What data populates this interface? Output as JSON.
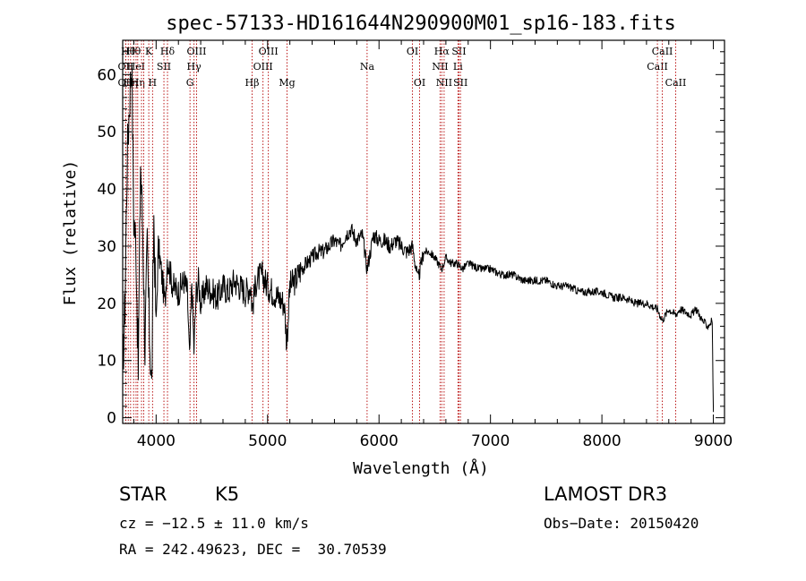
{
  "chart_data": {
    "type": "line",
    "title": "spec-57133-HD161644N290900M01_sp16-183.fits",
    "xlabel": "Wavelength (Å)",
    "ylabel": "Flux (relative)",
    "xlim": [
      3700,
      9100
    ],
    "ylim": [
      -1,
      66
    ],
    "xticks": [
      4000,
      5000,
      6000,
      7000,
      8000,
      9000
    ],
    "yticks": [
      0,
      10,
      20,
      30,
      40,
      50,
      60
    ],
    "xtick_labels": [
      "4000",
      "5000",
      "6000",
      "7000",
      "8000",
      "9000"
    ],
    "ytick_labels": [
      "0",
      "10",
      "20",
      "30",
      "40",
      "50",
      "60"
    ],
    "series": [
      {
        "name": "spectrum",
        "x": [
          3700,
          3720,
          3740,
          3760,
          3780,
          3800,
          3820,
          3840,
          3860,
          3880,
          3900,
          3920,
          3940,
          3960,
          3980,
          4000,
          4020,
          4050,
          4080,
          4100,
          4150,
          4200,
          4250,
          4280,
          4300,
          4320,
          4340,
          4360,
          4380,
          4400,
          4450,
          4500,
          4550,
          4600,
          4650,
          4700,
          4750,
          4800,
          4850,
          4861,
          4900,
          4950,
          5000,
          5050,
          5100,
          5150,
          5172,
          5200,
          5250,
          5300,
          5350,
          5400,
          5450,
          5500,
          5550,
          5600,
          5650,
          5700,
          5750,
          5800,
          5850,
          5893,
          5950,
          6000,
          6050,
          6100,
          6150,
          6200,
          6250,
          6300,
          6350,
          6400,
          6450,
          6500,
          6563,
          6600,
          6650,
          6700,
          6750,
          6800,
          6900,
          7000,
          7100,
          7200,
          7300,
          7400,
          7500,
          7600,
          7700,
          7800,
          7900,
          8000,
          8100,
          8200,
          8300,
          8400,
          8498,
          8542,
          8600,
          8662,
          8700,
          8800,
          8850,
          8900,
          8950,
          8990,
          9000
        ],
        "values": [
          8,
          20,
          45,
          55,
          63,
          35,
          30,
          8,
          45,
          33,
          12,
          30,
          15,
          5,
          35,
          16,
          30,
          25,
          20,
          28,
          23,
          22,
          24,
          22,
          10,
          24,
          12,
          22,
          24,
          20,
          23,
          22,
          21,
          23,
          22,
          24,
          23,
          22,
          23,
          19,
          24,
          25,
          23,
          22,
          21,
          20,
          13,
          23,
          24,
          26,
          27,
          28,
          29,
          29,
          30,
          31,
          30,
          32,
          33,
          31,
          32,
          26,
          32,
          31,
          31,
          30,
          31,
          30,
          29,
          30,
          24,
          29,
          29,
          28,
          26,
          28,
          27,
          27,
          26,
          27,
          26,
          26,
          25,
          25,
          24,
          24,
          24,
          23,
          23,
          22,
          22,
          22,
          21,
          21,
          20,
          20,
          19,
          17,
          19,
          18,
          19,
          18,
          19,
          17,
          16,
          17,
          1
        ]
      }
    ],
    "line_markers": [
      {
        "x": 3727,
        "label": "OII",
        "row": 2
      },
      {
        "x": 3727,
        "label": "OII",
        "row": 3
      },
      {
        "x": 3750,
        "label": "Hθ",
        "row": 1
      },
      {
        "x": 3771,
        "label": "Hη",
        "row": 3
      },
      {
        "x": 3798,
        "label": "Hθ",
        "row": 1
      },
      {
        "x": 3820,
        "label": "HeI",
        "row": 2
      },
      {
        "x": 3835,
        "label": "Hη",
        "row": 3
      },
      {
        "x": 3869,
        "label": "",
        "row": 0
      },
      {
        "x": 3889,
        "label": "",
        "row": 0
      },
      {
        "x": 3934,
        "label": "K",
        "row": 1
      },
      {
        "x": 3968,
        "label": "H",
        "row": 3
      },
      {
        "x": 4070,
        "label": "SII",
        "row": 2
      },
      {
        "x": 4102,
        "label": "Hδ",
        "row": 1
      },
      {
        "x": 4304,
        "label": "G",
        "row": 3
      },
      {
        "x": 4340,
        "label": "Hγ",
        "row": 2
      },
      {
        "x": 4363,
        "label": "OIII",
        "row": 1
      },
      {
        "x": 4861,
        "label": "Hβ",
        "row": 3
      },
      {
        "x": 4959,
        "label": "OIII",
        "row": 2
      },
      {
        "x": 5007,
        "label": "OIII",
        "row": 1
      },
      {
        "x": 5175,
        "label": "Mg",
        "row": 3
      },
      {
        "x": 5893,
        "label": "Na",
        "row": 2
      },
      {
        "x": 6300,
        "label": "OI",
        "row": 1
      },
      {
        "x": 6364,
        "label": "OI",
        "row": 3
      },
      {
        "x": 6548,
        "label": "NII",
        "row": 2
      },
      {
        "x": 6563,
        "label": "Hα",
        "row": 1
      },
      {
        "x": 6584,
        "label": "NII",
        "row": 3
      },
      {
        "x": 6708,
        "label": "Li",
        "row": 2
      },
      {
        "x": 6717,
        "label": "SII",
        "row": 1
      },
      {
        "x": 6731,
        "label": "SII",
        "row": 3
      },
      {
        "x": 8498,
        "label": "CaII",
        "row": 2
      },
      {
        "x": 8542,
        "label": "CaII",
        "row": 1
      },
      {
        "x": 8662,
        "label": "CaII",
        "row": 3
      }
    ]
  },
  "info": {
    "object_class": "STAR",
    "subclass": "K5",
    "survey": "LAMOST DR3",
    "redshift_text": "cz = −12.5 ± 11.0 km/s",
    "obs_date_text": "Obs−Date: 20150420",
    "coords_text": "RA = 242.49623, DEC =  30.70539"
  }
}
